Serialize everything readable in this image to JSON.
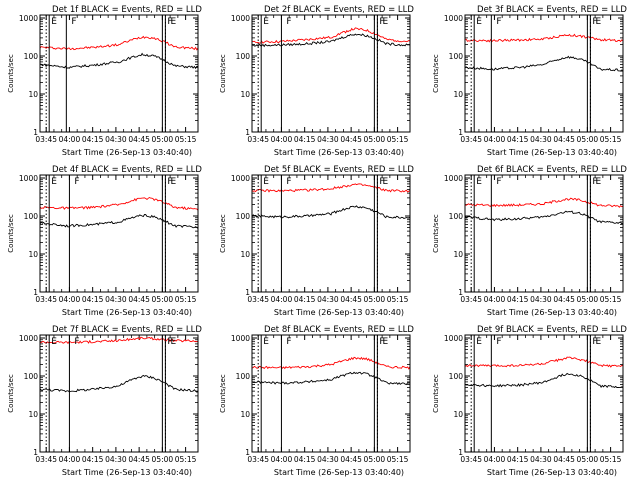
{
  "chart_data": [
    {
      "type": "line",
      "title": "Det 1f BLACK = Events, RED = LLD",
      "ylabel": "Counts/sec",
      "xlabel": "Start Time (26-Sep-13 03:40:40)",
      "x_ticks": [
        "03:45",
        "04:00",
        "04:15",
        "04:30",
        "04:45",
        "05:00",
        "05:15"
      ],
      "y_ticks": [
        "1",
        "10",
        "100",
        "1000"
      ],
      "ylim": [
        1,
        1200
      ],
      "log_y": true,
      "grid": false,
      "markers": [
        {
          "label": "E",
          "time": "03:45"
        },
        {
          "label": "F",
          "time": "03:58"
        },
        {
          "label": "F",
          "time": "05:00"
        },
        {
          "label": "E",
          "time": "05:02"
        }
      ],
      "series": [
        {
          "color": "#ff0000",
          "profile": [
            [
              0,
              170
            ],
            [
              0.18,
              155
            ],
            [
              0.35,
              170
            ],
            [
              0.5,
              200
            ],
            [
              0.65,
              320
            ],
            [
              0.72,
              300
            ],
            [
              0.85,
              175
            ],
            [
              1,
              155
            ]
          ]
        },
        {
          "color": "#000000",
          "profile": [
            [
              0,
              60
            ],
            [
              0.18,
              50
            ],
            [
              0.35,
              58
            ],
            [
              0.5,
              70
            ],
            [
              0.65,
              110
            ],
            [
              0.72,
              100
            ],
            [
              0.85,
              55
            ],
            [
              1,
              50
            ]
          ]
        }
      ]
    },
    {
      "type": "line",
      "title": "Det 2f BLACK = Events, RED = LLD",
      "ylabel": "Counts/sec",
      "xlabel": "Start Time (26-Sep-13 03:40:40)",
      "x_ticks": [
        "03:45",
        "04:00",
        "04:15",
        "04:30",
        "04:45",
        "05:00",
        "05:15"
      ],
      "y_ticks": [
        "1",
        "10",
        "100",
        "1000"
      ],
      "ylim": [
        1,
        1200
      ],
      "log_y": true,
      "grid": false,
      "markers": [
        {
          "label": "E",
          "time": "03:45"
        },
        {
          "label": "F",
          "time": "04:00"
        },
        {
          "label": "F",
          "time": "05:00"
        },
        {
          "label": "E",
          "time": "05:02"
        }
      ],
      "series": [
        {
          "color": "#ff0000",
          "profile": [
            [
              0,
              230
            ],
            [
              0.18,
              240
            ],
            [
              0.35,
              270
            ],
            [
              0.5,
              310
            ],
            [
              0.65,
              520
            ],
            [
              0.72,
              480
            ],
            [
              0.85,
              270
            ],
            [
              1,
              240
            ]
          ]
        },
        {
          "color": "#000000",
          "profile": [
            [
              0,
              190
            ],
            [
              0.18,
              195
            ],
            [
              0.35,
              210
            ],
            [
              0.5,
              240
            ],
            [
              0.65,
              380
            ],
            [
              0.72,
              350
            ],
            [
              0.85,
              210
            ],
            [
              1,
              190
            ]
          ]
        }
      ]
    },
    {
      "type": "line",
      "title": "Det 3f BLACK = Events, RED = LLD",
      "ylabel": "Counts/sec",
      "xlabel": "Start Time (26-Sep-13 03:40:40)",
      "x_ticks": [
        "03:45",
        "04:00",
        "04:15",
        "04:30",
        "04:45",
        "05:00",
        "05:15"
      ],
      "y_ticks": [
        "1",
        "10",
        "100",
        "1000"
      ],
      "ylim": [
        1,
        1200
      ],
      "log_y": true,
      "grid": false,
      "markers": [
        {
          "label": "E",
          "time": "03:45"
        },
        {
          "label": "F",
          "time": "03:58"
        },
        {
          "label": "F",
          "time": "05:00"
        },
        {
          "label": "E",
          "time": "05:02"
        }
      ],
      "series": [
        {
          "color": "#ff0000",
          "profile": [
            [
              0,
              260
            ],
            [
              0.18,
              255
            ],
            [
              0.35,
              265
            ],
            [
              0.5,
              280
            ],
            [
              0.65,
              360
            ],
            [
              0.72,
              340
            ],
            [
              0.85,
              270
            ],
            [
              1,
              255
            ]
          ]
        },
        {
          "color": "#000000",
          "profile": [
            [
              0,
              50
            ],
            [
              0.18,
              45
            ],
            [
              0.35,
              50
            ],
            [
              0.5,
              60
            ],
            [
              0.65,
              95
            ],
            [
              0.72,
              85
            ],
            [
              0.85,
              45
            ],
            [
              1,
              42
            ]
          ]
        }
      ]
    },
    {
      "type": "line",
      "title": "Det 4f BLACK = Events, RED = LLD",
      "ylabel": "Counts/sec",
      "xlabel": "Start Time (26-Sep-13 03:40:40)",
      "x_ticks": [
        "03:45",
        "04:00",
        "04:15",
        "04:30",
        "04:45",
        "05:00",
        "05:15"
      ],
      "y_ticks": [
        "1",
        "10",
        "100",
        "1000"
      ],
      "ylim": [
        1,
        1200
      ],
      "log_y": true,
      "grid": false,
      "markers": [
        {
          "label": "E",
          "time": "03:45"
        },
        {
          "label": "F",
          "time": "04:00"
        },
        {
          "label": "F",
          "time": "05:00"
        },
        {
          "label": "E",
          "time": "05:02"
        }
      ],
      "series": [
        {
          "color": "#ff0000",
          "profile": [
            [
              0,
              170
            ],
            [
              0.18,
              160
            ],
            [
              0.35,
              170
            ],
            [
              0.5,
              200
            ],
            [
              0.65,
              300
            ],
            [
              0.72,
              280
            ],
            [
              0.85,
              170
            ],
            [
              1,
              150
            ]
          ]
        },
        {
          "color": "#000000",
          "profile": [
            [
              0,
              65
            ],
            [
              0.18,
              55
            ],
            [
              0.35,
              60
            ],
            [
              0.5,
              70
            ],
            [
              0.65,
              105
            ],
            [
              0.72,
              95
            ],
            [
              0.85,
              55
            ],
            [
              1,
              50
            ]
          ]
        }
      ]
    },
    {
      "type": "line",
      "title": "Det 5f BLACK = Events, RED = LLD",
      "ylabel": "Counts/sec",
      "xlabel": "Start Time (26-Sep-13 03:40:40)",
      "x_ticks": [
        "03:45",
        "04:00",
        "04:15",
        "04:30",
        "04:45",
        "05:00",
        "05:15"
      ],
      "y_ticks": [
        "1",
        "10",
        "100",
        "1000"
      ],
      "ylim": [
        1,
        1200
      ],
      "log_y": true,
      "grid": false,
      "markers": [
        {
          "label": "E",
          "time": "03:45"
        },
        {
          "label": "F",
          "time": "04:00"
        },
        {
          "label": "F",
          "time": "05:00"
        },
        {
          "label": "E",
          "time": "05:02"
        }
      ],
      "series": [
        {
          "color": "#ff0000",
          "profile": [
            [
              0,
              470
            ],
            [
              0.18,
              460
            ],
            [
              0.35,
              480
            ],
            [
              0.5,
              520
            ],
            [
              0.65,
              680
            ],
            [
              0.72,
              640
            ],
            [
              0.85,
              470
            ],
            [
              1,
              450
            ]
          ]
        },
        {
          "color": "#000000",
          "profile": [
            [
              0,
              100
            ],
            [
              0.18,
              95
            ],
            [
              0.35,
              100
            ],
            [
              0.5,
              115
            ],
            [
              0.65,
              180
            ],
            [
              0.72,
              165
            ],
            [
              0.85,
              95
            ],
            [
              1,
              90
            ]
          ]
        }
      ]
    },
    {
      "type": "line",
      "title": "Det 6f BLACK = Events, RED = LLD",
      "ylabel": "Counts/sec",
      "xlabel": "Start Time (26-Sep-13 03:40:40)",
      "x_ticks": [
        "03:45",
        "04:00",
        "04:15",
        "04:30",
        "04:45",
        "05:00",
        "05:15"
      ],
      "y_ticks": [
        "1",
        "10",
        "100",
        "1000"
      ],
      "ylim": [
        1,
        1200
      ],
      "log_y": true,
      "grid": false,
      "markers": [
        {
          "label": "E",
          "time": "03:45"
        },
        {
          "label": "F",
          "time": "03:58"
        },
        {
          "label": "F",
          "time": "05:00"
        },
        {
          "label": "E",
          "time": "05:02"
        }
      ],
      "series": [
        {
          "color": "#ff0000",
          "profile": [
            [
              0,
              200
            ],
            [
              0.18,
              190
            ],
            [
              0.35,
              195
            ],
            [
              0.5,
              210
            ],
            [
              0.65,
              280
            ],
            [
              0.72,
              265
            ],
            [
              0.85,
              190
            ],
            [
              1,
              180
            ]
          ]
        },
        {
          "color": "#000000",
          "profile": [
            [
              0,
              95
            ],
            [
              0.18,
              80
            ],
            [
              0.35,
              85
            ],
            [
              0.5,
              95
            ],
            [
              0.65,
              130
            ],
            [
              0.72,
              120
            ],
            [
              0.85,
              70
            ],
            [
              1,
              65
            ]
          ]
        }
      ]
    },
    {
      "type": "line",
      "title": "Det 7f BLACK = Events, RED = LLD",
      "ylabel": "Counts/sec",
      "xlabel": "Start Time (26-Sep-13 03:40:40)",
      "x_ticks": [
        "03:45",
        "04:00",
        "04:15",
        "04:30",
        "04:45",
        "05:00",
        "05:15"
      ],
      "y_ticks": [
        "1",
        "10",
        "100",
        "1000"
      ],
      "ylim": [
        1,
        1200
      ],
      "log_y": true,
      "grid": false,
      "markers": [
        {
          "label": "E",
          "time": "03:45"
        },
        {
          "label": "F",
          "time": "04:00"
        },
        {
          "label": "F",
          "time": "05:00"
        },
        {
          "label": "E",
          "time": "05:02"
        }
      ],
      "series": [
        {
          "color": "#ff0000",
          "profile": [
            [
              0,
              780
            ],
            [
              0.18,
              770
            ],
            [
              0.35,
              800
            ],
            [
              0.5,
              860
            ],
            [
              0.65,
              1000
            ],
            [
              0.72,
              960
            ],
            [
              0.85,
              850
            ],
            [
              1,
              840
            ]
          ]
        },
        {
          "color": "#000000",
          "profile": [
            [
              0,
              45
            ],
            [
              0.18,
              40
            ],
            [
              0.35,
              45
            ],
            [
              0.5,
              55
            ],
            [
              0.65,
              100
            ],
            [
              0.72,
              90
            ],
            [
              0.85,
              45
            ],
            [
              1,
              40
            ]
          ]
        }
      ]
    },
    {
      "type": "line",
      "title": "Det 8f BLACK = Events, RED = LLD",
      "ylabel": "Counts/sec",
      "xlabel": "Start Time (26-Sep-13 03:40:40)",
      "x_ticks": [
        "03:45",
        "04:00",
        "04:15",
        "04:30",
        "04:45",
        "05:00",
        "05:15"
      ],
      "y_ticks": [
        "1",
        "10",
        "100",
        "1000"
      ],
      "ylim": [
        1,
        1200
      ],
      "log_y": true,
      "grid": false,
      "markers": [
        {
          "label": "E",
          "time": "03:45"
        },
        {
          "label": "F",
          "time": "04:00"
        },
        {
          "label": "F",
          "time": "05:00"
        },
        {
          "label": "E",
          "time": "05:02"
        }
      ],
      "series": [
        {
          "color": "#ff0000",
          "profile": [
            [
              0,
              170
            ],
            [
              0.18,
              165
            ],
            [
              0.35,
              175
            ],
            [
              0.5,
              200
            ],
            [
              0.65,
              300
            ],
            [
              0.72,
              285
            ],
            [
              0.85,
              175
            ],
            [
              1,
              165
            ]
          ]
        },
        {
          "color": "#000000",
          "profile": [
            [
              0,
              70
            ],
            [
              0.18,
              65
            ],
            [
              0.35,
              70
            ],
            [
              0.5,
              80
            ],
            [
              0.65,
              125
            ],
            [
              0.72,
              115
            ],
            [
              0.85,
              65
            ],
            [
              1,
              62
            ]
          ]
        }
      ]
    },
    {
      "type": "line",
      "title": "Det 9f BLACK = Events, RED = LLD",
      "ylabel": "Counts/sec",
      "xlabel": "Start Time (26-Sep-13 03:40:40)",
      "x_ticks": [
        "03:45",
        "04:00",
        "04:15",
        "04:30",
        "04:45",
        "05:00",
        "05:15"
      ],
      "y_ticks": [
        "1",
        "10",
        "100",
        "1000"
      ],
      "ylim": [
        1,
        1200
      ],
      "log_y": true,
      "grid": false,
      "markers": [
        {
          "label": "E",
          "time": "03:45"
        },
        {
          "label": "F",
          "time": "03:58"
        },
        {
          "label": "F",
          "time": "05:00"
        },
        {
          "label": "E",
          "time": "05:02"
        }
      ],
      "series": [
        {
          "color": "#ff0000",
          "profile": [
            [
              0,
              190
            ],
            [
              0.18,
              185
            ],
            [
              0.35,
              190
            ],
            [
              0.5,
              210
            ],
            [
              0.65,
              300
            ],
            [
              0.72,
              280
            ],
            [
              0.85,
              190
            ],
            [
              1,
              180
            ]
          ]
        },
        {
          "color": "#000000",
          "profile": [
            [
              0,
              60
            ],
            [
              0.18,
              55
            ],
            [
              0.35,
              58
            ],
            [
              0.5,
              68
            ],
            [
              0.65,
              115
            ],
            [
              0.72,
              105
            ],
            [
              0.85,
              55
            ],
            [
              1,
              50
            ]
          ]
        }
      ]
    }
  ]
}
